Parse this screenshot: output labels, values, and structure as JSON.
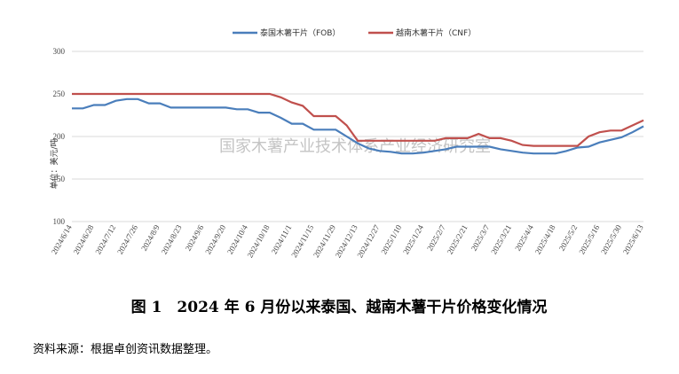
{
  "chart_data": {
    "type": "line",
    "title": "图 1　2024 年 6 月份以来泰国、越南木薯干片价格变化情况",
    "source": "资料来源：根据卓创资讯数据整理。",
    "watermark": "国家木薯产业技术体系产业经济研究室",
    "ylabel": "单位：美元/吨",
    "categories": [
      "2024/6/14",
      null,
      "2024/6/28",
      null,
      "2024/7/12",
      null,
      "2024/7/26",
      null,
      "2024/8/9",
      null,
      "2024/8/23",
      null,
      "2024/9/6",
      null,
      "2024/9/20",
      null,
      "2024/10/4",
      null,
      "2024/10/18",
      null,
      "2024/11/1",
      null,
      "2024/11/15",
      null,
      "2024/11/29",
      null,
      "2024/12/13",
      null,
      "2024/12/27",
      null,
      "2025/1/10",
      null,
      "2025/1/24",
      null,
      "2025/2/7",
      null,
      "2025/2/21",
      null,
      "2025/3/7",
      null,
      "2025/3/21",
      null,
      "2025/4/4",
      null,
      "2025/4/18",
      null,
      "2025/5/2",
      null,
      "2025/5/16",
      null,
      "2025/5/30",
      null,
      "2025/6/13"
    ],
    "series": [
      {
        "name": "泰国木薯干片（FOB）",
        "color": "#4a7ebb",
        "values": [
          233,
          233,
          237,
          237,
          242,
          244,
          244,
          239,
          239,
          234,
          234,
          234,
          234,
          234,
          234,
          232,
          232,
          228,
          228,
          222,
          215,
          215,
          208,
          208,
          208,
          200,
          192,
          186,
          183,
          182,
          180,
          180,
          181,
          183,
          185,
          188,
          188,
          188,
          188,
          185,
          183,
          181,
          180,
          180,
          180,
          183,
          187,
          188,
          193,
          196,
          199,
          205,
          212
        ]
      },
      {
        "name": "越南木薯干片（CNF）",
        "color": "#c0504d",
        "values": [
          250,
          250,
          250,
          250,
          250,
          250,
          250,
          250,
          250,
          250,
          250,
          250,
          250,
          250,
          250,
          250,
          250,
          250,
          250,
          246,
          240,
          236,
          224,
          224,
          224,
          213,
          195,
          195,
          195,
          195,
          195,
          195,
          195,
          195,
          198,
          198,
          198,
          203,
          198,
          198,
          195,
          190,
          189,
          189,
          189,
          189,
          189,
          200,
          205,
          207,
          207,
          213,
          219
        ]
      }
    ],
    "ylim": [
      100,
      300
    ],
    "yticks": [
      100,
      150,
      200,
      250,
      300
    ],
    "grid": true
  }
}
